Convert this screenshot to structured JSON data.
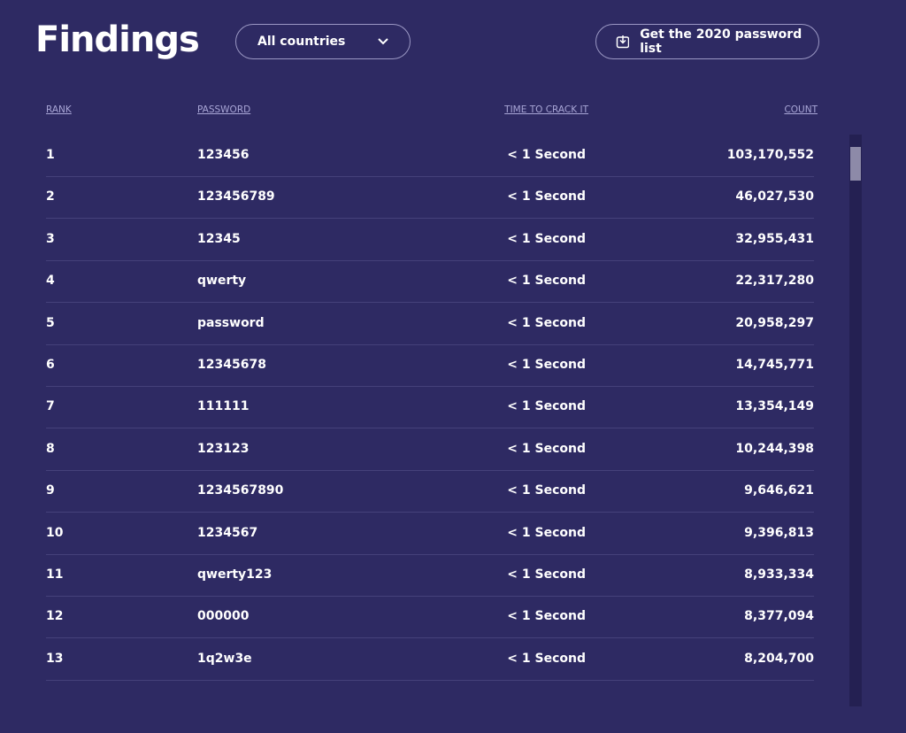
{
  "header": {
    "title": "Findings",
    "dropdown": "All countries",
    "button": "Get the 2020 password list"
  },
  "table": {
    "columns": [
      "RANK",
      "PASSWORD",
      "TIME TO CRACK IT",
      "COUNT"
    ],
    "rows": [
      [
        "1",
        "123456",
        "< 1 Second",
        "103,170,552"
      ],
      [
        "2",
        "123456789",
        "< 1 Second",
        "46,027,530"
      ],
      [
        "3",
        "12345",
        "< 1 Second",
        "32,955,431"
      ],
      [
        "4",
        "qwerty",
        "< 1 Second",
        "22,317,280"
      ],
      [
        "5",
        "password",
        "< 1 Second",
        "20,958,297"
      ],
      [
        "6",
        "12345678",
        "< 1 Second",
        "14,745,771"
      ],
      [
        "7",
        "111111",
        "< 1 Second",
        "13,354,149"
      ],
      [
        "8",
        "123123",
        "< 1 Second",
        "10,244,398"
      ],
      [
        "9",
        "1234567890",
        "< 1 Second",
        "9,646,621"
      ],
      [
        "10",
        "1234567",
        "< 1 Second",
        "9,396,813"
      ],
      [
        "11",
        "qwerty123",
        "< 1 Second",
        "8,933,334"
      ],
      [
        "12",
        "000000",
        "< 1 Second",
        "8,377,094"
      ],
      [
        "13",
        "1q2w3e",
        "< 1 Second",
        "8,204,700"
      ]
    ]
  }
}
